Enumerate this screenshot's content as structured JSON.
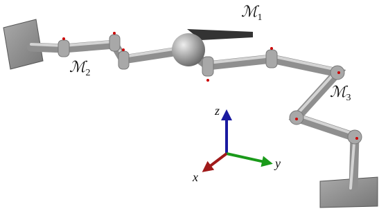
{
  "labels": [
    {
      "symbol": "ℳ",
      "subscript": "1"
    },
    {
      "symbol": "ℳ",
      "subscript": "2"
    },
    {
      "symbol": "ℳ",
      "subscript": "3"
    }
  ],
  "axes": {
    "z": "z",
    "y": "y",
    "x": "x"
  }
}
